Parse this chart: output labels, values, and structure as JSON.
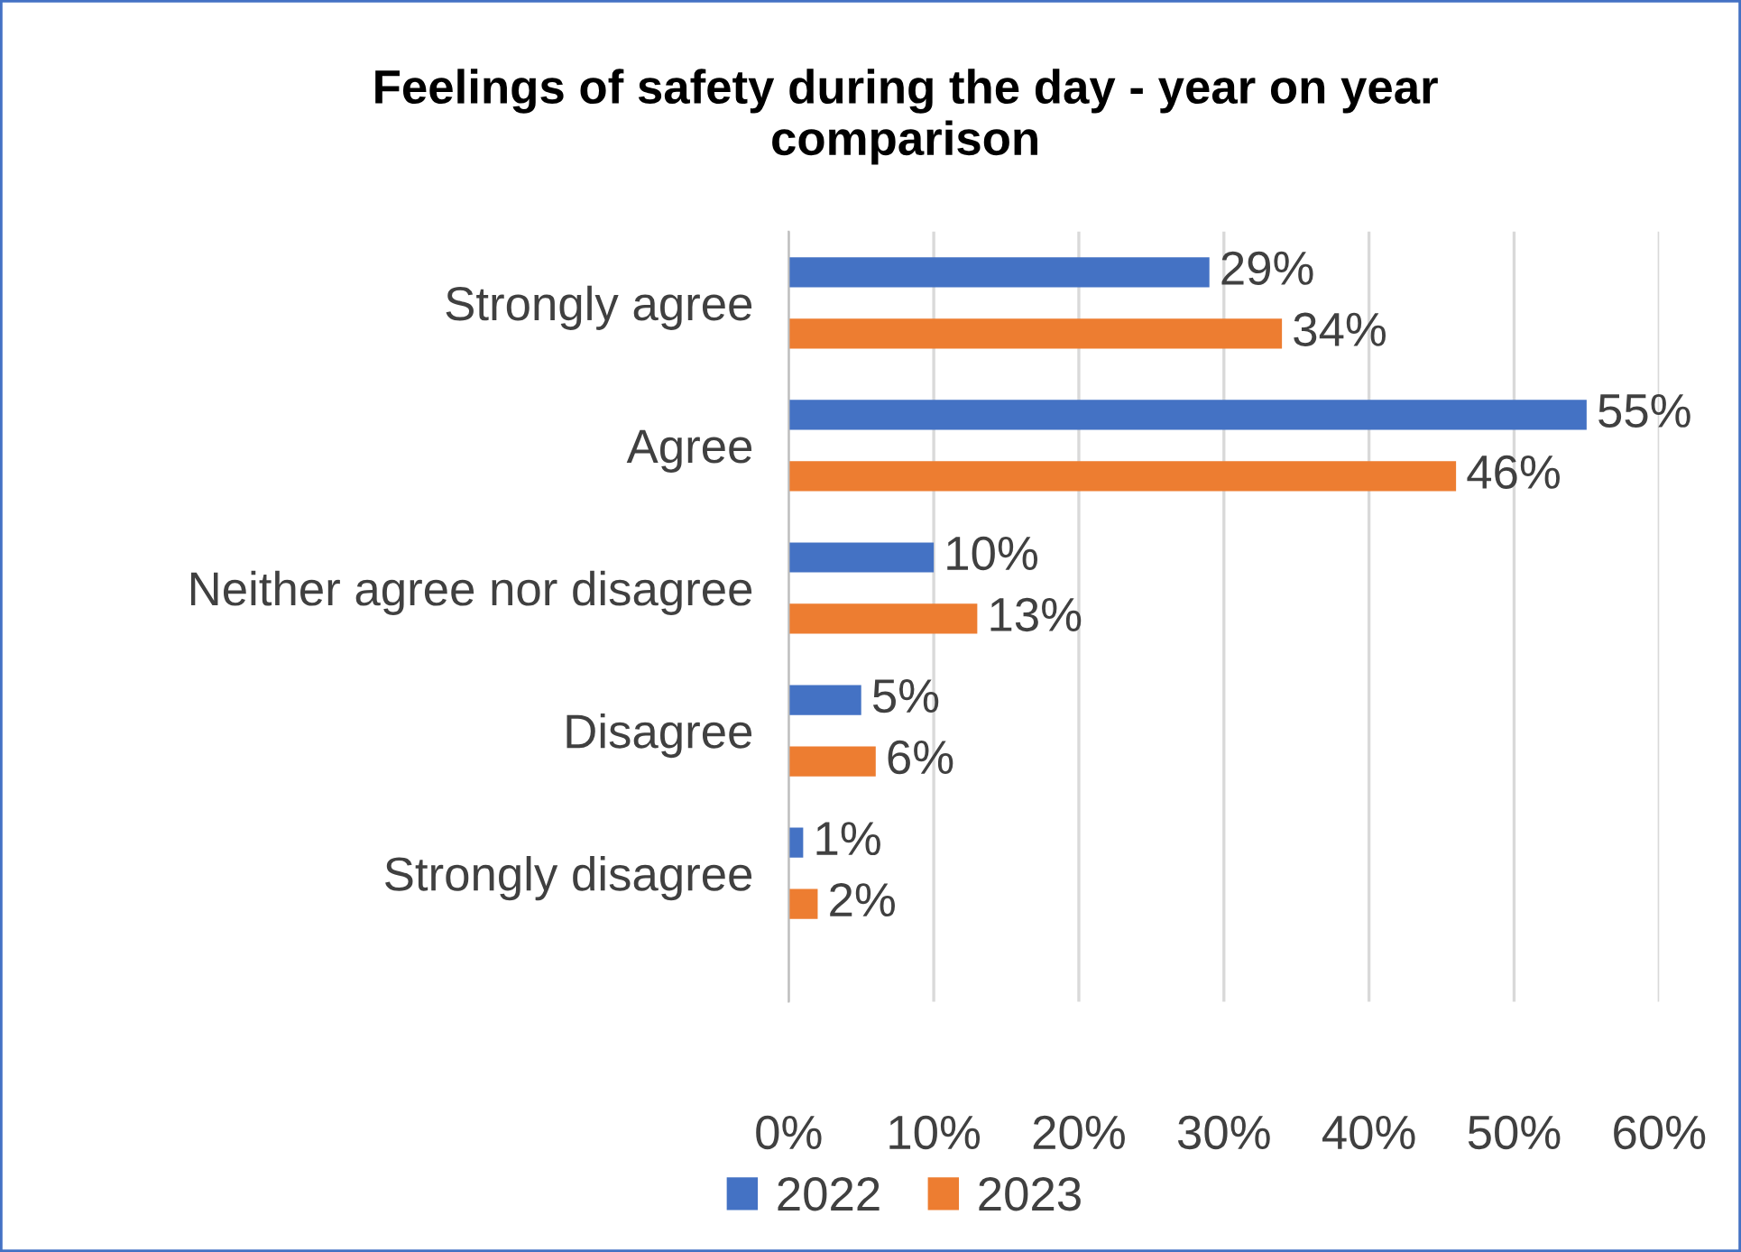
{
  "chart_data": {
    "type": "bar",
    "orientation": "horizontal",
    "title": "Feelings of safety during the day - year on year comparison",
    "categories": [
      "Strongly agree",
      "Agree",
      "Neither agree nor disagree",
      "Disagree",
      "Strongly disagree"
    ],
    "series": [
      {
        "name": "2022",
        "color": "#4472c4",
        "values": [
          29,
          55,
          10,
          5,
          1
        ],
        "value_labels": [
          "29%",
          "55%",
          "10%",
          "5%",
          "1%"
        ]
      },
      {
        "name": "2023",
        "color": "#ed7d31",
        "values": [
          34,
          46,
          13,
          6,
          2
        ],
        "value_labels": [
          "34%",
          "46%",
          "13%",
          "6%",
          "2%"
        ]
      }
    ],
    "xlim": [
      0,
      60
    ],
    "xticks": [
      {
        "value": 0,
        "label": "0%"
      },
      {
        "value": 10,
        "label": "10%"
      },
      {
        "value": 20,
        "label": "20%"
      },
      {
        "value": 30,
        "label": "30%"
      },
      {
        "value": 40,
        "label": "40%"
      },
      {
        "value": 50,
        "label": "50%"
      },
      {
        "value": 60,
        "label": "60%"
      }
    ],
    "grid": "x",
    "legend": "bottom"
  }
}
